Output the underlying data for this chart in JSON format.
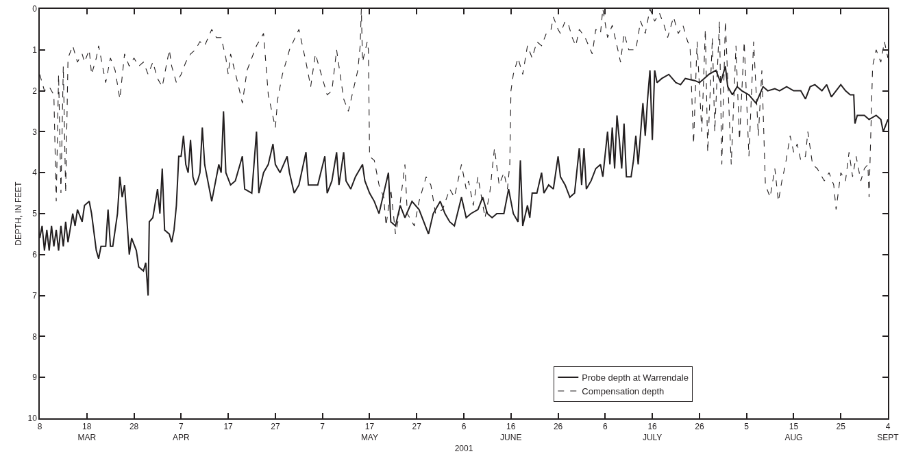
{
  "chart_data": {
    "type": "line",
    "xlabel": "2001",
    "ylabel": "DEPTH, IN FEET",
    "xlim": [
      "2001-03-08",
      "2001-09-04"
    ],
    "ylim": [
      10,
      0
    ],
    "xticks": [
      {
        "value": "2001-03-08",
        "label": "8"
      },
      {
        "value": "2001-03-18",
        "label": "18\nMAR"
      },
      {
        "value": "2001-03-28",
        "label": "28"
      },
      {
        "value": "2001-04-07",
        "label": "7\nAPR"
      },
      {
        "value": "2001-04-17",
        "label": "17"
      },
      {
        "value": "2001-04-27",
        "label": "27"
      },
      {
        "value": "2001-05-07",
        "label": "7"
      },
      {
        "value": "2001-05-17",
        "label": "17\nMAY"
      },
      {
        "value": "2001-05-27",
        "label": "27"
      },
      {
        "value": "2001-06-06",
        "label": "6"
      },
      {
        "value": "2001-06-16",
        "label": "16\nJUNE"
      },
      {
        "value": "2001-06-26",
        "label": "26"
      },
      {
        "value": "2001-07-06",
        "label": "6"
      },
      {
        "value": "2001-07-16",
        "label": "16\nJULY"
      },
      {
        "value": "2001-07-26",
        "label": "26"
      },
      {
        "value": "2001-08-05",
        "label": "5"
      },
      {
        "value": "2001-08-15",
        "label": "15\nAUG"
      },
      {
        "value": "2001-08-25",
        "label": "25"
      },
      {
        "value": "2001-09-04",
        "label": "4\nSEPT"
      }
    ],
    "yticks": [
      0,
      1,
      2,
      3,
      4,
      5,
      6,
      7,
      8,
      9,
      10
    ],
    "legend": "bottom right",
    "marker": "none",
    "series": [
      {
        "name": "Probe depth at Warrendale",
        "color": "#231f20",
        "line_style": "solid",
        "x": [
          "2001-03-08T00:00",
          "2001-03-08T12:00",
          "2001-03-09T00:00",
          "2001-03-09T12:00",
          "2001-03-10T00:00",
          "2001-03-10T12:00",
          "2001-03-11T00:00",
          "2001-03-11T12:00",
          "2001-03-12T00:00",
          "2001-03-12T12:00",
          "2001-03-13T00:00",
          "2001-03-13T12:00",
          "2001-03-14T00:00",
          "2001-03-15T00:00",
          "2001-03-15T12:00",
          "2001-03-16T00:00",
          "2001-03-17T00:00",
          "2001-03-17T12:00",
          "2001-03-18T12:00",
          "2001-03-19T00:00",
          "2001-03-20T00:00",
          "2001-03-20T12:00",
          "2001-03-21T00:00",
          "2001-03-22T00:00",
          "2001-03-22T12:00",
          "2001-03-23T00:00",
          "2001-03-23T12:00",
          "2001-03-24T12:00",
          "2001-03-25T00:00",
          "2001-03-25T12:00",
          "2001-03-26T00:00",
          "2001-03-27T00:00",
          "2001-03-27T12:00",
          "2001-03-28T12:00",
          "2001-03-29T00:00",
          "2001-03-30T00:00",
          "2001-03-30T12:00",
          "2001-03-31T00:00",
          "2001-03-31T06:00",
          "2001-04-01T00:00",
          "2001-04-02T00:00",
          "2001-04-02T12:00",
          "2001-04-03T00:00",
          "2001-04-03T12:00",
          "2001-04-04T12:00",
          "2001-04-05T00:00",
          "2001-04-05T12:00",
          "2001-04-06T00:00",
          "2001-04-06T12:00",
          "2001-04-07T00:00",
          "2001-04-07T12:00",
          "2001-04-08T00:00",
          "2001-04-08T12:00",
          "2001-04-09T00:00",
          "2001-04-09T12:00",
          "2001-04-10T00:00",
          "2001-04-10T12:00",
          "2001-04-11T00:00",
          "2001-04-11T12:00",
          "2001-04-12T00:00",
          "2001-04-12T12:00",
          "2001-04-13T12:00",
          "2001-04-14T00:00",
          "2001-04-15T00:00",
          "2001-04-15T12:00",
          "2001-04-16T00:00",
          "2001-04-16T12:00",
          "2001-04-17T12:00",
          "2001-04-18T12:00",
          "2001-04-19T00:00",
          "2001-04-20T00:00",
          "2001-04-20T12:00",
          "2001-04-22T00:00",
          "2001-04-23T00:00",
          "2001-04-23T12:00",
          "2001-04-24T12:00",
          "2001-04-25T12:00",
          "2001-04-26T12:00",
          "2001-04-27T00:00",
          "2001-04-28T00:00",
          "2001-04-29T12:00",
          "2001-04-30T00:00",
          "2001-05-01T00:00",
          "2001-05-02T00:00",
          "2001-05-03T12:00",
          "2001-05-04T00:00",
          "2001-05-06T00:00",
          "2001-05-07T12:00",
          "2001-05-08T00:00",
          "2001-05-09T00:00",
          "2001-05-10T00:00",
          "2001-05-10T12:00",
          "2001-05-11T12:00",
          "2001-05-12T00:00",
          "2001-05-13T00:00",
          "2001-05-14T00:00",
          "2001-05-15T12:00",
          "2001-05-16T00:00",
          "2001-05-17T00:00",
          "2001-05-18T00:00",
          "2001-05-19T00:00",
          "2001-05-20T00:00",
          "2001-05-21T00:00",
          "2001-05-21T12:00",
          "2001-05-22T12:00",
          "2001-05-23T12:00",
          "2001-05-24T12:00",
          "2001-05-26T00:00",
          "2001-05-27T12:00",
          "2001-05-28T12:00",
          "2001-05-29T12:00",
          "2001-05-30T12:00",
          "2001-06-01T00:00",
          "2001-06-02T00:00",
          "2001-06-03T00:00",
          "2001-06-04T00:00",
          "2001-06-05T12:00",
          "2001-06-06T12:00",
          "2001-06-07T12:00",
          "2001-06-09T00:00",
          "2001-06-10T00:00",
          "2001-06-11T00:00",
          "2001-06-12T00:00",
          "2001-06-13T00:00",
          "2001-06-14T12:00",
          "2001-06-15T12:00",
          "2001-06-16T12:00",
          "2001-06-17T12:00",
          "2001-06-18T00:00",
          "2001-06-18T12:00",
          "2001-06-19T12:00",
          "2001-06-20T00:00",
          "2001-06-20T12:00",
          "2001-06-21T12:00",
          "2001-06-22T12:00",
          "2001-06-23T00:00",
          "2001-06-24T00:00",
          "2001-06-25T00:00",
          "2001-06-26T00:00",
          "2001-06-26T12:00",
          "2001-06-27T12:00",
          "2001-06-28T12:00",
          "2001-06-29T12:00",
          "2001-06-30T12:00",
          "2001-07-01T00:00",
          "2001-07-01T12:00",
          "2001-07-02T00:00",
          "2001-07-03T00:00",
          "2001-07-04T00:00",
          "2001-07-05T00:00",
          "2001-07-05T12:00",
          "2001-07-06T12:00",
          "2001-07-07T00:00",
          "2001-07-07T12:00",
          "2001-07-08T00:00",
          "2001-07-08T12:00",
          "2001-07-09T00:00",
          "2001-07-09T12:00",
          "2001-07-10T00:00",
          "2001-07-10T12:00",
          "2001-07-11T12:00",
          "2001-07-12T00:00",
          "2001-07-12T12:00",
          "2001-07-13T00:00",
          "2001-07-14T00:00",
          "2001-07-14T12:00",
          "2001-07-15T00:00",
          "2001-07-15T12:00",
          "2001-07-16T00:00",
          "2001-07-16T12:00",
          "2001-07-17T00:00",
          "2001-07-18T00:00",
          "2001-07-19T12:00",
          "2001-07-21T00:00",
          "2001-07-22T00:00",
          "2001-07-23T00:00",
          "2001-07-25T00:00",
          "2001-07-26T00:00",
          "2001-07-27T00:00",
          "2001-07-28T00:00",
          "2001-07-29T12:00",
          "2001-07-30T12:00",
          "2001-07-31T12:00",
          "2001-08-01T00:00",
          "2001-08-02T00:00",
          "2001-08-03T00:00",
          "2001-08-04T00:00",
          "2001-08-05T12:00",
          "2001-08-07T00:00",
          "2001-08-08T12:00",
          "2001-08-09T12:00",
          "2001-08-11T00:00",
          "2001-08-12T00:00",
          "2001-08-13T12:00",
          "2001-08-15T00:00",
          "2001-08-16T12:00",
          "2001-08-17T12:00",
          "2001-08-18T12:00",
          "2001-08-19T12:00",
          "2001-08-21T00:00",
          "2001-08-22T00:00",
          "2001-08-23T00:00",
          "2001-08-24T00:00",
          "2001-08-25T00:00",
          "2001-08-26T00:00",
          "2001-08-27T00:00",
          "2001-08-27T18:00",
          "2001-08-28T00:00",
          "2001-08-28T12:00",
          "2001-08-30T00:00",
          "2001-08-31T00:00",
          "2001-09-01T12:00",
          "2001-09-02T12:00",
          "2001-09-03T00:00",
          "2001-09-04T00:00"
        ],
        "values": [
          5.6,
          5.3,
          5.9,
          5.4,
          5.9,
          5.3,
          5.8,
          5.4,
          5.9,
          5.3,
          5.8,
          5.2,
          5.7,
          5.0,
          5.3,
          4.9,
          5.2,
          4.8,
          4.7,
          5.0,
          5.9,
          6.1,
          5.8,
          5.8,
          4.9,
          5.8,
          5.8,
          5.0,
          4.1,
          4.6,
          4.3,
          6.0,
          5.6,
          5.9,
          6.3,
          6.4,
          6.2,
          7.0,
          5.2,
          5.1,
          4.4,
          5.0,
          3.9,
          5.4,
          5.5,
          5.7,
          5.4,
          4.8,
          3.6,
          3.6,
          3.1,
          3.8,
          4.0,
          3.2,
          4.1,
          4.3,
          4.2,
          4.0,
          2.9,
          3.8,
          4.1,
          4.7,
          4.4,
          3.8,
          4.0,
          2.5,
          4.0,
          4.3,
          4.2,
          4.0,
          3.6,
          4.4,
          4.5,
          3.0,
          4.5,
          4.0,
          3.8,
          3.3,
          3.8,
          4.0,
          3.6,
          4.0,
          4.5,
          4.3,
          3.5,
          4.3,
          4.3,
          3.6,
          4.5,
          4.2,
          3.5,
          4.3,
          3.5,
          4.2,
          4.4,
          4.1,
          3.8,
          4.2,
          4.5,
          4.7,
          5.0,
          4.5,
          4.0,
          5.2,
          5.3,
          4.8,
          5.1,
          4.7,
          4.9,
          5.2,
          5.5,
          5.0,
          4.7,
          5.0,
          5.2,
          5.3,
          4.6,
          5.1,
          5.0,
          4.9,
          4.6,
          5.0,
          5.1,
          5.0,
          5.0,
          4.4,
          5.0,
          5.2,
          3.7,
          5.3,
          4.8,
          5.1,
          4.5,
          4.5,
          4.0,
          4.5,
          4.3,
          4.4,
          3.6,
          4.1,
          4.3,
          4.6,
          4.5,
          3.4,
          4.3,
          3.4,
          4.4,
          4.2,
          3.9,
          3.8,
          4.1,
          3.0,
          3.8,
          2.9,
          3.9,
          2.6,
          3.2,
          3.9,
          2.8,
          4.1,
          4.1,
          3.7,
          3.1,
          3.8,
          2.3,
          3.1,
          2.2,
          1.5,
          3.2,
          1.5,
          1.8,
          1.7,
          1.6,
          1.8,
          1.85,
          1.7,
          1.75,
          1.8,
          1.7,
          1.6,
          1.5,
          1.8,
          1.4,
          1.9,
          2.1,
          1.9,
          2.0,
          2.1,
          2.3,
          1.9,
          2.0,
          1.95,
          2.0,
          1.9,
          2.0,
          2.0,
          2.2,
          1.9,
          1.85,
          2.0,
          1.85,
          2.15,
          2.0,
          1.85,
          2.0,
          2.1,
          2.1,
          2.8,
          2.6,
          2.6,
          2.7,
          2.6,
          2.7,
          3.0,
          2.7
        ]
      },
      {
        "name": "Compensation depth",
        "color": "#231f20",
        "line_style": "dashed",
        "x": [
          "2001-03-08T00:00",
          "2001-03-09T00:00",
          "2001-03-10T00:00",
          "2001-03-11T00:00",
          "2001-03-11T12:00",
          "2001-03-12T00:00",
          "2001-03-12T12:00",
          "2001-03-13T00:00",
          "2001-03-13T12:00",
          "2001-03-14T00:00",
          "2001-03-15T00:00",
          "2001-03-16T00:00",
          "2001-03-17T00:00",
          "2001-03-17T12:00",
          "2001-03-18T12:00",
          "2001-03-19T00:00",
          "2001-03-20T00:00",
          "2001-03-20T12:00",
          "2001-03-21T12:00",
          "2001-03-22T00:00",
          "2001-03-23T00:00",
          "2001-03-24T00:00",
          "2001-03-25T00:00",
          "2001-03-26T00:00",
          "2001-03-27T00:00",
          "2001-03-28T00:00",
          "2001-03-29T00:00",
          "2001-03-30T00:00",
          "2001-03-31T00:00",
          "2001-04-01T00:00",
          "2001-04-02T00:00",
          "2001-04-03T00:00",
          "2001-04-04T12:00",
          "2001-04-05T00:00",
          "2001-04-06T00:00",
          "2001-04-07T00:00",
          "2001-04-08T00:00",
          "2001-04-09T00:00",
          "2001-04-10T00:00",
          "2001-04-11T00:00",
          "2001-04-12T00:00",
          "2001-04-13T12:00",
          "2001-04-14T12:00",
          "2001-04-15T12:00",
          "2001-04-16T12:00",
          "2001-04-17T00:00",
          "2001-04-17T12:00",
          "2001-04-19T00:00",
          "2001-04-20T00:00",
          "2001-04-21T00:00",
          "2001-04-22T00:00",
          "2001-04-23T00:00",
          "2001-04-24T12:00",
          "2001-04-25T12:00",
          "2001-04-27T00:00",
          "2001-04-27T12:00",
          "2001-04-28T12:00",
          "2001-04-30T00:00",
          "2001-05-02T00:00",
          "2001-05-03T12:00",
          "2001-05-04T12:00",
          "2001-05-05T12:00",
          "2001-05-07T00:00",
          "2001-05-08T00:00",
          "2001-05-09T00:00",
          "2001-05-10T00:00",
          "2001-05-11T12:00",
          "2001-05-12T12:00",
          "2001-05-13T12:00",
          "2001-05-14T12:00",
          "2001-05-15T00:00",
          "2001-05-15T06:00",
          "2001-05-15T12:00",
          "2001-05-16T12:00",
          "2001-05-16T18:00",
          "2001-05-17T00:00",
          "2001-05-18T00:00",
          "2001-05-19T00:00",
          "2001-05-20T00:00",
          "2001-05-20T12:00",
          "2001-05-21T12:00",
          "2001-05-22T12:00",
          "2001-05-23T00:00",
          "2001-05-24T12:00",
          "2001-05-25T00:00",
          "2001-05-26T12:00",
          "2001-05-27T12:00",
          "2001-05-29T00:00",
          "2001-05-30T00:00",
          "2001-05-31T00:00",
          "2001-06-01T12:00",
          "2001-06-03T00:00",
          "2001-06-04T00:00",
          "2001-06-05T12:00",
          "2001-06-06T12:00",
          "2001-06-07T00:00",
          "2001-06-08T00:00",
          "2001-06-09T00:00",
          "2001-06-10T12:00",
          "2001-06-11T12:00",
          "2001-06-12T12:00",
          "2001-06-13T12:00",
          "2001-06-14T12:00",
          "2001-06-15T06:00",
          "2001-06-15T18:00",
          "2001-06-16T00:00",
          "2001-06-16T12:00",
          "2001-06-17T12:00",
          "2001-06-18T12:00",
          "2001-06-19T12:00",
          "2001-06-20T12:00",
          "2001-06-21T12:00",
          "2001-06-22T12:00",
          "2001-06-23T12:00",
          "2001-06-24T12:00",
          "2001-06-25T00:00",
          "2001-06-26T00:00",
          "2001-06-26T12:00",
          "2001-06-27T12:00",
          "2001-06-28T06:00",
          "2001-06-29T00:00",
          "2001-06-29T18:00",
          "2001-06-30T12:00",
          "2001-07-01T18:00",
          "2001-07-03T06:00",
          "2001-07-04T00:00",
          "2001-07-05T00:00",
          "2001-07-05T12:00",
          "2001-07-06T12:00",
          "2001-07-07T12:00",
          "2001-07-08T12:00",
          "2001-07-09T06:00",
          "2001-07-10T00:00",
          "2001-07-11T00:00",
          "2001-07-12T12:00",
          "2001-07-13T12:00",
          "2001-07-14T12:00",
          "2001-07-15T12:00",
          "2001-07-16T12:00",
          "2001-07-17T12:00",
          "2001-07-18T12:00",
          "2001-07-19T06:00",
          "2001-07-20T12:00",
          "2001-07-21T12:00",
          "2001-07-22T12:00",
          "2001-07-23T12:00",
          "2001-07-24T00:00",
          "2001-07-24T18:00",
          "2001-07-25T12:00",
          "2001-07-26T12:00",
          "2001-07-27T06:00",
          "2001-07-27T18:00",
          "2001-07-28T18:00",
          "2001-07-29T06:00",
          "2001-07-30T06:00",
          "2001-07-30T18:00",
          "2001-07-31T12:00",
          "2001-08-01T18:00",
          "2001-08-02T18:00",
          "2001-08-03T12:00",
          "2001-08-04T12:00",
          "2001-08-05T12:00",
          "2001-08-06T12:00",
          "2001-08-07T12:00",
          "2001-08-08T06:00",
          "2001-08-09T00:00",
          "2001-08-10T00:00",
          "2001-08-11T00:00",
          "2001-08-11T18:00",
          "2001-08-12T12:00",
          "2001-08-13T06:00",
          "2001-08-14T06:00",
          "2001-08-15T00:00",
          "2001-08-15T18:00",
          "2001-08-16T12:00",
          "2001-08-17T12:00",
          "2001-08-18T00:00",
          "2001-08-19T00:00",
          "2001-08-20T00:00",
          "2001-08-21T12:00",
          "2001-08-22T12:00",
          "2001-08-23T12:00",
          "2001-08-24T00:00",
          "2001-08-25T00:00",
          "2001-08-26T00:00",
          "2001-08-26T18:00",
          "2001-08-27T12:00",
          "2001-08-28T06:00",
          "2001-08-29T06:00",
          "2001-08-30T00:00",
          "2001-08-30T18:00",
          "2001-08-31T00:00",
          "2001-08-31T18:00",
          "2001-09-01T12:00",
          "2001-09-02T12:00",
          "2001-09-03T06:00",
          "2001-09-04T00:00"
        ],
        "values": [
          1.6,
          2.0,
          1.9,
          2.1,
          4.7,
          1.6,
          4.5,
          1.4,
          4.5,
          1.2,
          0.9,
          1.3,
          1.1,
          1.3,
          1.0,
          1.6,
          1.2,
          0.9,
          1.5,
          1.8,
          1.2,
          1.5,
          2.2,
          1.1,
          1.4,
          1.2,
          1.4,
          1.3,
          1.6,
          1.3,
          1.7,
          1.9,
          1.0,
          1.4,
          1.8,
          1.6,
          1.3,
          1.1,
          1.0,
          0.8,
          0.9,
          0.5,
          0.7,
          0.7,
          1.2,
          1.6,
          1.1,
          1.8,
          2.3,
          1.5,
          1.2,
          0.9,
          0.6,
          2.1,
          2.9,
          2.2,
          1.6,
          1.0,
          0.5,
          1.3,
          1.9,
          1.1,
          1.7,
          2.1,
          2.0,
          1.0,
          2.2,
          2.5,
          2.0,
          1.5,
          0.9,
          0.0,
          1.3,
          0.8,
          1.0,
          3.6,
          3.7,
          4.3,
          4.6,
          5.3,
          4.4,
          5.5,
          5.2,
          3.8,
          5.0,
          5.3,
          4.7,
          4.1,
          4.3,
          5.0,
          4.9,
          4.4,
          4.6,
          3.8,
          4.4,
          4.2,
          4.8,
          4.1,
          5.1,
          4.5,
          3.4,
          4.3,
          4.0,
          4.4,
          3.8,
          2.0,
          1.6,
          1.2,
          1.6,
          0.9,
          1.2,
          0.8,
          0.9,
          0.6,
          0.5,
          0.2,
          0.5,
          0.6,
          0.3,
          0.4,
          0.7,
          0.9,
          0.5,
          0.7,
          1.1,
          0.5,
          0.6,
          0.0,
          0.7,
          0.4,
          0.9,
          1.3,
          0.6,
          1.0,
          1.0,
          0.3,
          0.6,
          0.0,
          0.3,
          0.1,
          0.4,
          0.7,
          0.2,
          0.6,
          0.4,
          0.8,
          0.9,
          3.3,
          0.8,
          3.0,
          0.5,
          3.5,
          0.7,
          3.0,
          0.3,
          3.8,
          0.3,
          3.8,
          0.9,
          3.2,
          0.8,
          3.6,
          0.8,
          3.1,
          1.5,
          4.3,
          4.6,
          3.9,
          4.7,
          4.2,
          3.8,
          3.1,
          3.5,
          3.3,
          3.7,
          3.6,
          3.0,
          3.8,
          3.9,
          4.2,
          4.0,
          4.3,
          4.9,
          4.0,
          4.2,
          3.5,
          4.1,
          3.6,
          4.2,
          3.9,
          3.8,
          4.6,
          1.4,
          1.0,
          1.3,
          0.8,
          1.2
        ]
      }
    ]
  }
}
